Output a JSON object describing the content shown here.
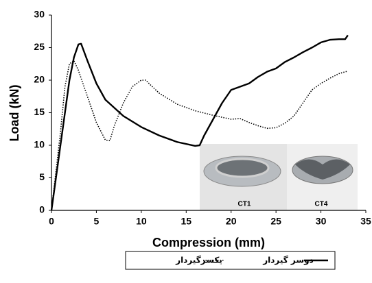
{
  "chart_data": {
    "type": "line",
    "xlabel": "Compression (mm)",
    "ylabel": "Load (kN)",
    "xlim": [
      0,
      35
    ],
    "xticks": [
      0,
      5,
      10,
      15,
      20,
      25,
      30,
      35
    ],
    "ylim": [
      0,
      30
    ],
    "yticks": [
      0,
      5,
      10,
      15,
      20,
      25,
      30
    ],
    "grid": false,
    "legend": "bottom",
    "inset_labels": [
      "CT1",
      "CT4"
    ],
    "series": [
      {
        "name": "دوسر گیردار",
        "color": "#000000",
        "style": "solid",
        "x": [
          0,
          1,
          2,
          2.5,
          3,
          3.3,
          4,
          5,
          6,
          8,
          10,
          12,
          14,
          16,
          16.5,
          17,
          18,
          19,
          20,
          21,
          22,
          23,
          24,
          25,
          26,
          27,
          28,
          29,
          30,
          31,
          32,
          32.7,
          33
        ],
        "values": [
          0,
          10,
          20,
          23.5,
          25.5,
          25.6,
          23,
          19.5,
          17,
          14.5,
          12.8,
          11.5,
          10.5,
          9.9,
          10,
          11.5,
          14,
          16.5,
          18.5,
          19,
          19.5,
          20.5,
          21.3,
          21.8,
          22.8,
          23.5,
          24.3,
          25,
          25.8,
          26.2,
          26.3,
          26.3,
          26.9
        ]
      },
      {
        "name": "یکسرگیردار",
        "color": "#000000",
        "style": "dotted",
        "x": [
          0,
          1,
          1.5,
          2,
          2.5,
          3,
          4,
          5,
          6,
          6.5,
          7,
          8,
          9,
          10,
          10.5,
          11,
          12,
          14,
          16,
          18,
          20,
          21,
          22,
          23,
          24,
          25,
          26,
          27,
          28,
          29,
          30,
          31,
          32,
          33
        ],
        "values": [
          0,
          12,
          19,
          22.5,
          23,
          21.5,
          17.5,
          13.5,
          10.8,
          10.7,
          13,
          16.5,
          19,
          20,
          20,
          19.3,
          18,
          16.3,
          15.3,
          14.6,
          14,
          14.1,
          13.5,
          13,
          12.6,
          12.7,
          13.4,
          14.5,
          16.5,
          18.5,
          19.5,
          20.3,
          21,
          21.4
        ]
      }
    ]
  }
}
